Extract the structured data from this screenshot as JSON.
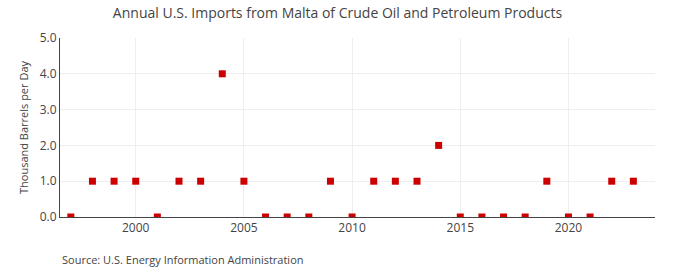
{
  "chart_data": {
    "type": "scatter",
    "title": "Annual U.S. Imports from Malta of Crude Oil and Petroleum Products",
    "ylabel": "Thousand Barrels per Day",
    "annotations": [
      "Source: U.S. Energy Information Administration"
    ],
    "x": [
      1997,
      1998,
      1999,
      2000,
      2001,
      2002,
      2003,
      2004,
      2005,
      2006,
      2007,
      2008,
      2009,
      2010,
      2011,
      2012,
      2013,
      2014,
      2015,
      2016,
      2017,
      2018,
      2019,
      2020,
      2021,
      2022,
      2023
    ],
    "values": [
      0,
      1,
      1,
      1,
      0,
      1,
      1,
      4,
      1,
      0,
      0,
      0,
      1,
      0,
      1,
      1,
      1,
      2,
      0,
      0,
      0,
      0,
      1,
      0,
      0,
      1,
      1
    ],
    "color": "#cc0000",
    "marker": "square",
    "xlim": [
      1996.5,
      2024
    ],
    "xticks": [
      2000,
      2005,
      2010,
      2015,
      2020
    ],
    "ylim": [
      0,
      5.0
    ],
    "yticks": [
      {
        "value": 0.0,
        "label": "0.0"
      },
      {
        "value": 1.0,
        "label": "1.0"
      },
      {
        "value": 2.0,
        "label": "2.0"
      },
      {
        "value": 3.0,
        "label": "3.0"
      },
      {
        "value": 4.0,
        "label": "4.0"
      },
      {
        "value": 5.0,
        "label": "5.0"
      }
    ],
    "grid": true
  }
}
